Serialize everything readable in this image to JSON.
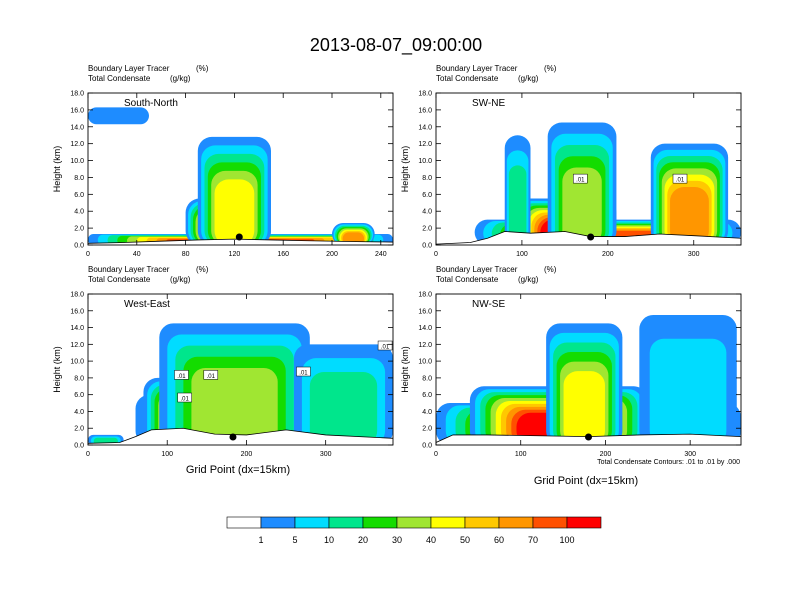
{
  "figure": {
    "title": "2013-08-07_09:00:00",
    "x_axis_label": "Grid Point (dx=15km)",
    "contour_note": "Total Condensate Contours: .01 to .01 by .000"
  },
  "fields": {
    "line1": "Boundary Layer Tracer",
    "line1_unit": "(%)",
    "line2": "Total Condensate",
    "line2_unit": "(g/kg)"
  },
  "colors": [
    "#ffffff",
    "#1e8cff",
    "#00dcff",
    "#00e68c",
    "#14dc00",
    "#a0e632",
    "#ffff00",
    "#ffc800",
    "#ff9600",
    "#ff5000",
    "#ff0000"
  ],
  "colorbar": {
    "labels": [
      "1",
      "5",
      "10",
      "20",
      "30",
      "40",
      "50",
      "60",
      "70",
      "100"
    ]
  },
  "chart_data": [
    {
      "type": "heatmap",
      "panel": "South-North",
      "xlim": [
        0,
        250
      ],
      "xticks": [
        0,
        40,
        80,
        120,
        160,
        200,
        240
      ],
      "ylabel": "Height (km)",
      "ylim": [
        0,
        18
      ],
      "yticks": [
        "0.0",
        "2.0",
        "4.0",
        "6.0",
        "8.0",
        "10.0",
        "12.0",
        "14.0",
        "16.0",
        "18.0"
      ],
      "marker_x": 124,
      "contour_labels": [],
      "terrain": [
        [
          0,
          0.2
        ],
        [
          30,
          0.3
        ],
        [
          60,
          0.45
        ],
        [
          90,
          0.6
        ],
        [
          120,
          0.7
        ],
        [
          150,
          0.6
        ],
        [
          180,
          0.5
        ],
        [
          220,
          0.4
        ],
        [
          250,
          0.35
        ]
      ],
      "plumes": [
        {
          "x0": 0,
          "x1": 250,
          "top": 1.3,
          "level": 9
        },
        {
          "x0": 80,
          "x1": 150,
          "top": 5.5,
          "level": 10
        },
        {
          "x0": 200,
          "x1": 235,
          "top": 2.6,
          "level": 8
        },
        {
          "x0": 90,
          "x1": 150,
          "top": 12.8,
          "level": 6
        },
        {
          "x0": 0,
          "x1": 50,
          "top": 16.3,
          "bottom": 14.3,
          "level": 1
        }
      ]
    },
    {
      "type": "heatmap",
      "panel": "SW-NE",
      "xlim": [
        0,
        355
      ],
      "xticks": [
        0,
        100,
        200,
        300
      ],
      "ylabel": "Height (km)",
      "ylim": [
        0,
        18
      ],
      "yticks": [
        "0.0",
        "2.0",
        "4.0",
        "6.0",
        "8.0",
        "10.0",
        "12.0",
        "14.0",
        "16.0",
        "18.0"
      ],
      "marker_x": 180,
      "contour_labels": [
        {
          "text": ".01",
          "x": 168,
          "y": 7.8
        },
        {
          "text": ".01",
          "x": 284,
          "y": 7.8
        }
      ],
      "terrain": [
        [
          0,
          0.1
        ],
        [
          40,
          0.3
        ],
        [
          60,
          0.8
        ],
        [
          80,
          1.6
        ],
        [
          110,
          1.4
        ],
        [
          150,
          1.6
        ],
        [
          180,
          1.0
        ],
        [
          220,
          1.0
        ],
        [
          260,
          1.3
        ],
        [
          300,
          1.1
        ],
        [
          355,
          0.8
        ]
      ],
      "plumes": [
        {
          "x0": 45,
          "x1": 355,
          "top": 3.0,
          "level": 9
        },
        {
          "x0": 90,
          "x1": 210,
          "top": 5.5,
          "level": 10
        },
        {
          "x0": 80,
          "x1": 110,
          "top": 13.0,
          "level": 3
        },
        {
          "x0": 130,
          "x1": 210,
          "top": 14.5,
          "level": 5
        },
        {
          "x0": 250,
          "x1": 340,
          "top": 12.0,
          "level": 8
        }
      ]
    },
    {
      "type": "heatmap",
      "panel": "West-East",
      "xlim": [
        0,
        385
      ],
      "xticks": [
        0,
        100,
        200,
        300
      ],
      "ylabel": "Height (km)",
      "ylim": [
        0,
        18
      ],
      "yticks": [
        "0.0",
        "2.0",
        "4.0",
        "6.0",
        "8.0",
        "10.0",
        "12.0",
        "14.0",
        "16.0",
        "18.0"
      ],
      "marker_x": 183,
      "contour_labels": [
        {
          "text": ".01",
          "x": 118,
          "y": 8.3
        },
        {
          "text": ".01",
          "x": 155,
          "y": 8.3
        },
        {
          "text": ".01",
          "x": 122,
          "y": 5.6
        },
        {
          "text": ".01",
          "x": 272,
          "y": 8.7
        },
        {
          "text": ".01",
          "x": 375,
          "y": 11.8
        }
      ],
      "terrain": [
        [
          0,
          0.2
        ],
        [
          40,
          0.3
        ],
        [
          60,
          1.0
        ],
        [
          80,
          1.8
        ],
        [
          120,
          2.0
        ],
        [
          160,
          1.3
        ],
        [
          200,
          1.2
        ],
        [
          250,
          1.8
        ],
        [
          300,
          1.2
        ],
        [
          385,
          0.8
        ]
      ],
      "plumes": [
        {
          "x0": 0,
          "x1": 45,
          "top": 1.2,
          "level": 3
        },
        {
          "x0": 60,
          "x1": 385,
          "top": 6.0,
          "level": 9
        },
        {
          "x0": 70,
          "x1": 230,
          "top": 8.0,
          "level": 10
        },
        {
          "x0": 90,
          "x1": 280,
          "top": 14.5,
          "level": 5
        },
        {
          "x0": 260,
          "x1": 385,
          "top": 12.0,
          "level": 3
        }
      ]
    },
    {
      "type": "heatmap",
      "panel": "NW-SE",
      "xlim": [
        0,
        360
      ],
      "xticks": [
        0,
        100,
        200,
        300
      ],
      "ylabel": "Height (km)",
      "ylim": [
        0,
        18
      ],
      "yticks": [
        "0.0",
        "2.0",
        "4.0",
        "6.0",
        "8.0",
        "10.0",
        "12.0",
        "14.0",
        "16.0",
        "18.0"
      ],
      "marker_x": 180,
      "contour_labels": [],
      "terrain": [
        [
          0,
          0.3
        ],
        [
          20,
          1.2
        ],
        [
          60,
          1.2
        ],
        [
          120,
          1.1
        ],
        [
          180,
          1.0
        ],
        [
          240,
          1.2
        ],
        [
          300,
          1.3
        ],
        [
          360,
          1.0
        ]
      ],
      "plumes": [
        {
          "x0": 0,
          "x1": 360,
          "top": 5.0,
          "level": 9
        },
        {
          "x0": 40,
          "x1": 250,
          "top": 7.0,
          "level": 10
        },
        {
          "x0": 130,
          "x1": 220,
          "top": 14.5,
          "level": 6
        },
        {
          "x0": 240,
          "x1": 355,
          "top": 15.5,
          "level": 2
        }
      ]
    }
  ]
}
